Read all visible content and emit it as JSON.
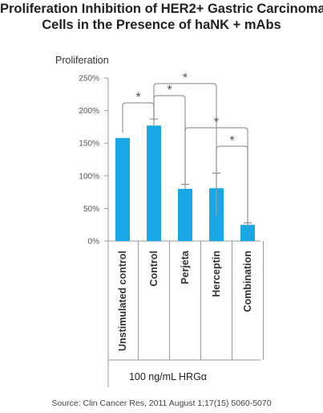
{
  "title_lines": [
    "Proliferation Inhibition of HER2+ Gastric Carcinoma",
    "Cells in the Presence of haNK + mAbs"
  ],
  "chart_data": {
    "type": "bar",
    "title": "Proliferation Inhibition of HER2+ Gastric Carcinoma Cells in the Presence of haNK + mAbs",
    "ylabel": "Proliferation",
    "xlabel": "100 ng/mL HRGα",
    "categories": [
      "Unstimulated control",
      "Control",
      "Perjeta",
      "Herceptin",
      "Combination"
    ],
    "values": [
      158,
      177,
      80,
      81,
      25
    ],
    "error_upper": [
      158,
      187,
      87,
      104,
      28
    ],
    "ylim": [
      0,
      250
    ],
    "yticks": [
      0,
      50,
      100,
      150,
      200,
      250
    ],
    "ytick_labels": [
      "0%",
      "50%",
      "100%",
      "150%",
      "200%",
      "250%"
    ],
    "bar_color": "#1aa7e6",
    "significance": [
      {
        "from": "Unstimulated control",
        "to": "Control",
        "label": "*"
      },
      {
        "from": "Control",
        "to": "Perjeta",
        "label": "*"
      },
      {
        "from": "Control",
        "to": "Herceptin",
        "label": "*"
      },
      {
        "from": "Perjeta",
        "to": "Combination",
        "label": "*"
      },
      {
        "from": "Herceptin",
        "to": "Combination",
        "label": "*"
      }
    ]
  },
  "source": "Source: Clin Cancer Res, 2011 August 1;17(15) 5060-5070"
}
